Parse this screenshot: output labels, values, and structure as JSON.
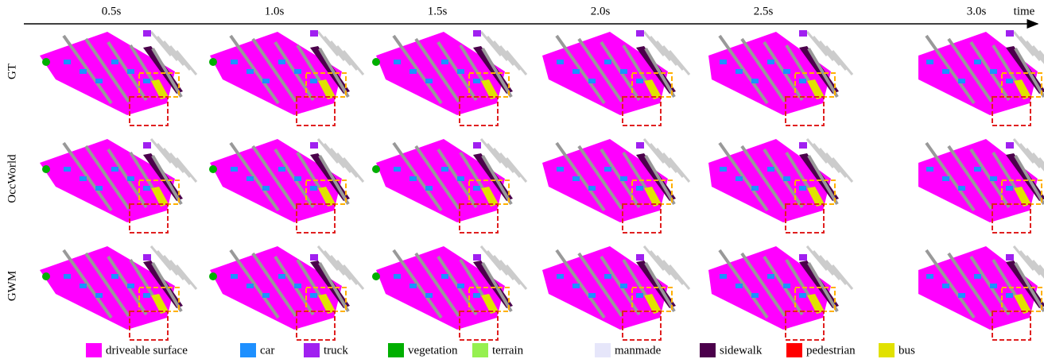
{
  "time_axis": {
    "label": "time",
    "steps": [
      "0.5s",
      "1.0s",
      "1.5s",
      "2.0s",
      "2.5s",
      "3.0s"
    ]
  },
  "rows": [
    "GT",
    "OccWorld",
    "GWM"
  ],
  "legend": [
    {
      "label": "driveable surface",
      "color": "#ff00ff"
    },
    {
      "label": "car",
      "color": "#1e90ff"
    },
    {
      "label": "truck",
      "color": "#a020f0"
    },
    {
      "label": "vegetation",
      "color": "#00af00"
    },
    {
      "label": "terrain",
      "color": "#96f050"
    },
    {
      "label": "manmade",
      "color": "#e6e6fa"
    },
    {
      "label": "sidewalk",
      "color": "#4b004b"
    },
    {
      "label": "pedestrian",
      "color": "#ff0000"
    },
    {
      "label": "bus",
      "color": "#e1e100"
    }
  ]
}
